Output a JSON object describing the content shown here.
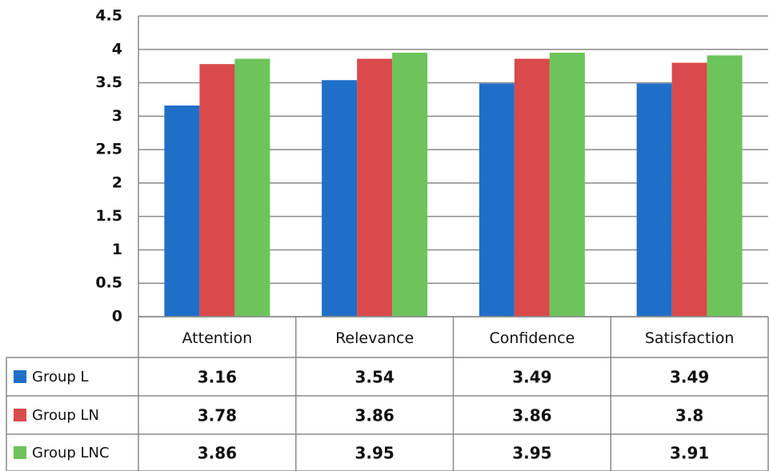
{
  "chart_data": {
    "type": "bar",
    "categories": [
      "Attention",
      "Relevance",
      "Confidence",
      "Satisfaction"
    ],
    "series": [
      {
        "name": "Group L",
        "color": "#1f6fc8",
        "values": [
          3.16,
          3.54,
          3.49,
          3.49
        ]
      },
      {
        "name": "Group LN",
        "color": "#d94a4a",
        "values": [
          3.78,
          3.86,
          3.86,
          3.8
        ]
      },
      {
        "name": "Group LNC",
        "color": "#6cc45a",
        "values": [
          3.86,
          3.95,
          3.95,
          3.91
        ]
      }
    ],
    "ylim": [
      0,
      4.5
    ],
    "yticks": [
      0,
      0.5,
      1,
      1.5,
      2,
      2.5,
      3,
      3.5,
      4,
      4.5
    ],
    "grid": true
  }
}
